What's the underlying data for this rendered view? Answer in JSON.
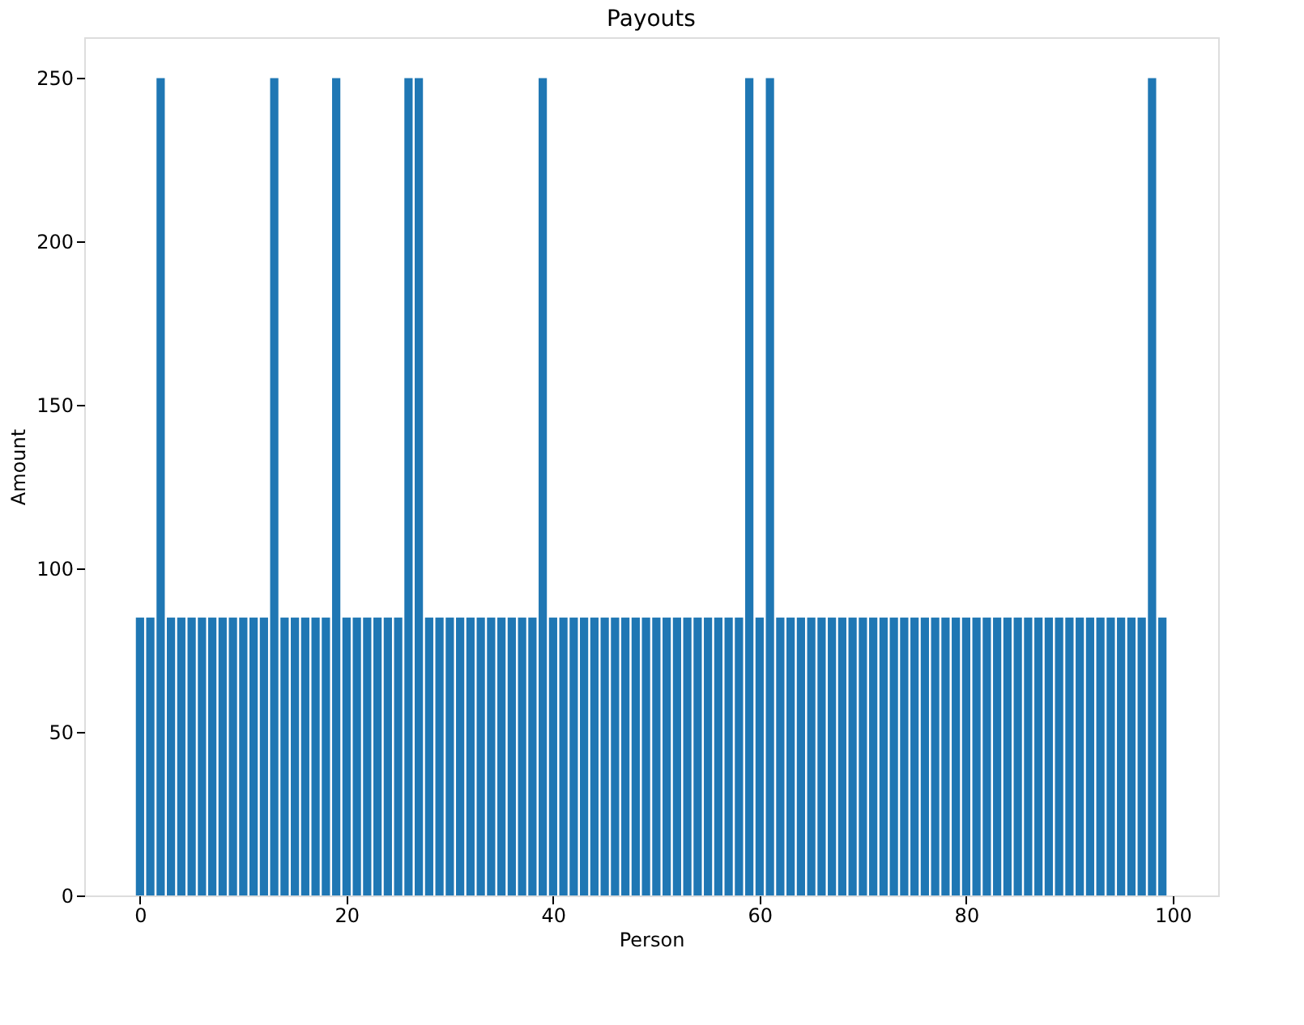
{
  "chart_data": {
    "type": "bar",
    "title": "Payouts",
    "xlabel": "Person",
    "ylabel": "Amount",
    "x": [
      0,
      1,
      2,
      3,
      4,
      5,
      6,
      7,
      8,
      9,
      10,
      11,
      12,
      13,
      14,
      15,
      16,
      17,
      18,
      19,
      20,
      21,
      22,
      23,
      24,
      25,
      26,
      27,
      28,
      29,
      30,
      31,
      32,
      33,
      34,
      35,
      36,
      37,
      38,
      39,
      40,
      41,
      42,
      43,
      44,
      45,
      46,
      47,
      48,
      49,
      50,
      51,
      52,
      53,
      54,
      55,
      56,
      57,
      58,
      59,
      60,
      61,
      62,
      63,
      64,
      65,
      66,
      67,
      68,
      69,
      70,
      71,
      72,
      73,
      74,
      75,
      76,
      77,
      78,
      79,
      80,
      81,
      82,
      83,
      84,
      85,
      86,
      87,
      88,
      89,
      90,
      91,
      92,
      93,
      94,
      95,
      96,
      97,
      98,
      99
    ],
    "values": [
      85,
      85,
      250,
      85,
      85,
      85,
      85,
      85,
      85,
      85,
      85,
      85,
      85,
      250,
      85,
      85,
      85,
      85,
      85,
      250,
      85,
      85,
      85,
      85,
      85,
      85,
      250,
      250,
      85,
      85,
      85,
      85,
      85,
      85,
      85,
      85,
      85,
      85,
      85,
      250,
      85,
      85,
      85,
      85,
      85,
      85,
      85,
      85,
      85,
      85,
      85,
      85,
      85,
      85,
      85,
      85,
      85,
      85,
      85,
      250,
      85,
      250,
      85,
      85,
      85,
      85,
      85,
      85,
      85,
      85,
      85,
      85,
      85,
      85,
      85,
      85,
      85,
      85,
      85,
      85,
      85,
      85,
      85,
      85,
      85,
      85,
      85,
      85,
      85,
      85,
      85,
      85,
      85,
      85,
      85,
      85,
      85,
      85,
      250,
      85
    ],
    "color": "#1f77b4",
    "xlim": [
      -5.4,
      104.4
    ],
    "xticks": [
      0,
      20,
      40,
      60,
      80,
      100
    ],
    "ylim": [
      0,
      262.5
    ],
    "yticks": [
      0,
      50,
      100,
      150,
      200,
      250
    ],
    "grid": false
  }
}
